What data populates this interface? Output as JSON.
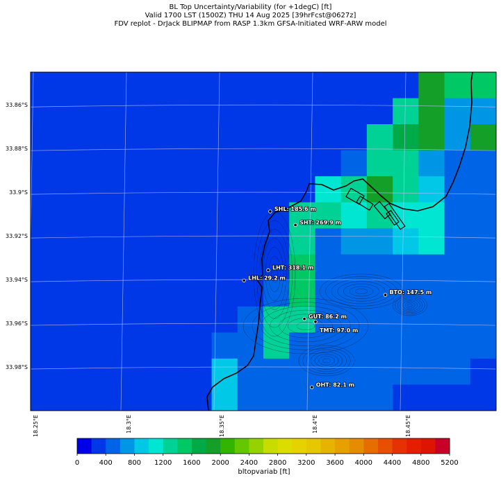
{
  "title": {
    "line1": "BL Top Uncertainty/Variability (for +1degC) [ft]",
    "line2": "Valid 1700 LST (1500Z) THU 14 Aug 2025 [39hrFcst@0627z]",
    "line3": "FDV replot - DrJack BLIPMAP from RASP 1.3km GFSA-Initiated WRF-ARW model"
  },
  "lat_labels": [
    "33.86°S",
    "33.88°S",
    "33.9°S",
    "33.92°S",
    "33.94°S",
    "33.96°S",
    "33.98°S"
  ],
  "lon_labels": [
    "18.25°E",
    "18.3°E",
    "18.35°E",
    "18.4°E",
    "18.45°E"
  ],
  "colorbar": {
    "label": "bltopvariab [ft]",
    "ticks": [
      "0",
      "400",
      "800",
      "1200",
      "1600",
      "2000",
      "2400",
      "2800",
      "3200",
      "3600",
      "4000",
      "4400",
      "4800",
      "5200"
    ],
    "colors": [
      "#0000e6",
      "#0037e6",
      "#0064e6",
      "#0096e6",
      "#00c8e6",
      "#00e6d2",
      "#00d296",
      "#00c864",
      "#00aa46",
      "#14a028",
      "#32b400",
      "#64c800",
      "#96d200",
      "#c8dc00",
      "#dcdc00",
      "#e6d200",
      "#e6c800",
      "#e6b400",
      "#e6a000",
      "#e68c00",
      "#e66e00",
      "#e65000",
      "#e63200",
      "#e61e00",
      "#dc1400",
      "#c80028"
    ]
  },
  "stations": [
    {
      "code": "SHL",
      "label": "SHL: 185.6 m",
      "lon": 18.3787,
      "lat": -33.9088
    },
    {
      "code": "SHT",
      "label": "SHT: 269.9 m",
      "lon": 18.3922,
      "lat": -33.915
    },
    {
      "code": "LHT",
      "label": "LHT: 318.1 m",
      "lon": 18.3776,
      "lat": -33.9357
    },
    {
      "code": "LHL",
      "label": "LHL: 29.2 m",
      "lon": 18.3646,
      "lat": -33.9404
    },
    {
      "code": "BTO",
      "label": "BTO: 147.5 m",
      "lon": 18.4405,
      "lat": -33.947
    },
    {
      "code": "GUT",
      "label": "GUT: 86.2 m",
      "lon": 18.397,
      "lat": -33.958
    },
    {
      "code": "TMT",
      "label": "TMT: 97.0 m",
      "lon": 18.403,
      "lat": -33.9593
    },
    {
      "code": "OHT",
      "label": "OHT: 82.1 m",
      "lon": 18.401,
      "lat": -33.9893
    }
  ],
  "chart_data": {
    "type": "heatmap",
    "variable": "bltopvariab",
    "units": "ft",
    "lon_range": [
      18.25,
      18.5
    ],
    "lat_range": [
      -34.0,
      -33.845
    ],
    "grid_cols": 18,
    "grid_rows": 13,
    "value_range": [
      0,
      5200
    ],
    "cells": [
      [
        200,
        200,
        200,
        200,
        200,
        200,
        200,
        200,
        200,
        200,
        200,
        200,
        200,
        200,
        200,
        1800,
        1400,
        1400
      ],
      [
        200,
        200,
        200,
        200,
        200,
        200,
        200,
        200,
        200,
        200,
        200,
        200,
        200,
        200,
        1200,
        1800,
        700,
        700
      ],
      [
        200,
        200,
        200,
        200,
        200,
        200,
        200,
        200,
        200,
        200,
        200,
        200,
        200,
        1300,
        1600,
        1800,
        700,
        1800
      ],
      [
        200,
        200,
        200,
        200,
        200,
        200,
        200,
        200,
        200,
        200,
        200,
        200,
        400,
        1200,
        1300,
        700,
        400,
        400
      ],
      [
        200,
        200,
        200,
        200,
        200,
        200,
        200,
        200,
        200,
        200,
        200,
        1100,
        1300,
        1900,
        1300,
        900,
        400,
        400
      ],
      [
        200,
        200,
        200,
        200,
        200,
        200,
        200,
        200,
        200,
        200,
        1300,
        1200,
        1100,
        1300,
        1100,
        1100,
        400,
        400
      ],
      [
        200,
        200,
        200,
        200,
        200,
        200,
        200,
        200,
        200,
        200,
        1300,
        400,
        600,
        600,
        900,
        1100,
        400,
        400
      ],
      [
        200,
        200,
        200,
        200,
        200,
        200,
        200,
        200,
        200,
        200,
        1400,
        400,
        400,
        400,
        400,
        400,
        400,
        400
      ],
      [
        200,
        200,
        200,
        200,
        200,
        200,
        200,
        200,
        200,
        400,
        1400,
        400,
        400,
        400,
        400,
        400,
        400,
        400
      ],
      [
        200,
        200,
        200,
        200,
        200,
        200,
        200,
        200,
        400,
        1200,
        1300,
        400,
        400,
        400,
        400,
        400,
        400,
        400
      ],
      [
        200,
        200,
        200,
        200,
        200,
        200,
        200,
        400,
        400,
        1200,
        400,
        400,
        400,
        400,
        400,
        400,
        400,
        400
      ],
      [
        200,
        200,
        200,
        200,
        200,
        200,
        200,
        900,
        400,
        400,
        400,
        400,
        400,
        400,
        400,
        400,
        400,
        200
      ],
      [
        200,
        200,
        200,
        200,
        200,
        200,
        200,
        900,
        400,
        400,
        400,
        400,
        400,
        400,
        200,
        200,
        200,
        200
      ]
    ]
  }
}
